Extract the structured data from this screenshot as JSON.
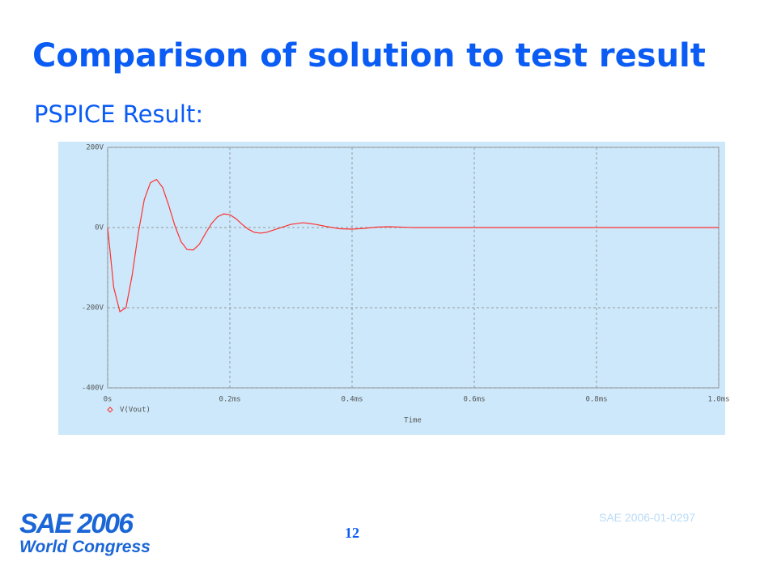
{
  "title": "Comparison of solution to test result",
  "subtitle": "PSPICE Result:",
  "footer": "SAE 2006-01-0297",
  "page_number": "12",
  "logo": {
    "line1": "SAE 2006",
    "line2": "World Congress"
  },
  "chart_data": {
    "type": "line",
    "xlabel": "Time",
    "x": [
      0,
      0.01,
      0.02,
      0.03,
      0.04,
      0.05,
      0.06,
      0.07,
      0.08,
      0.09,
      0.1,
      0.11,
      0.12,
      0.13,
      0.14,
      0.15,
      0.16,
      0.17,
      0.18,
      0.19,
      0.2,
      0.21,
      0.22,
      0.23,
      0.24,
      0.25,
      0.26,
      0.28,
      0.3,
      0.32,
      0.34,
      0.36,
      0.38,
      0.4,
      0.42,
      0.44,
      0.46,
      0.5,
      0.6,
      0.7,
      0.8,
      0.9,
      1.0
    ],
    "series": [
      {
        "name": "V(Vout)",
        "color": "#ff3030",
        "values": [
          0,
          -150,
          -210,
          -200,
          -120,
          -15,
          70,
          112,
          120,
          100,
          55,
          5,
          -35,
          -55,
          -56,
          -42,
          -15,
          10,
          27,
          34,
          32,
          22,
          8,
          -4,
          -12,
          -14,
          -12,
          -2,
          8,
          12,
          8,
          2,
          -3,
          -4,
          -2,
          1,
          2,
          0,
          0,
          0,
          0,
          0,
          0
        ]
      }
    ],
    "xlim": [
      0,
      1.0
    ],
    "xticks": [
      {
        "value": 0,
        "label": "0s"
      },
      {
        "value": 0.2,
        "label": "0.2ms"
      },
      {
        "value": 0.4,
        "label": "0.4ms"
      },
      {
        "value": 0.6,
        "label": "0.6ms"
      },
      {
        "value": 0.8,
        "label": "0.8ms"
      },
      {
        "value": 1.0,
        "label": "1.0ms"
      }
    ],
    "ylim": [
      -400,
      200
    ],
    "yticks": [
      {
        "value": -400,
        "label": "-400V"
      },
      {
        "value": -200,
        "label": "-200V"
      },
      {
        "value": 0,
        "label": "0V"
      },
      {
        "value": 200,
        "label": "200V"
      }
    ],
    "grid": true
  }
}
